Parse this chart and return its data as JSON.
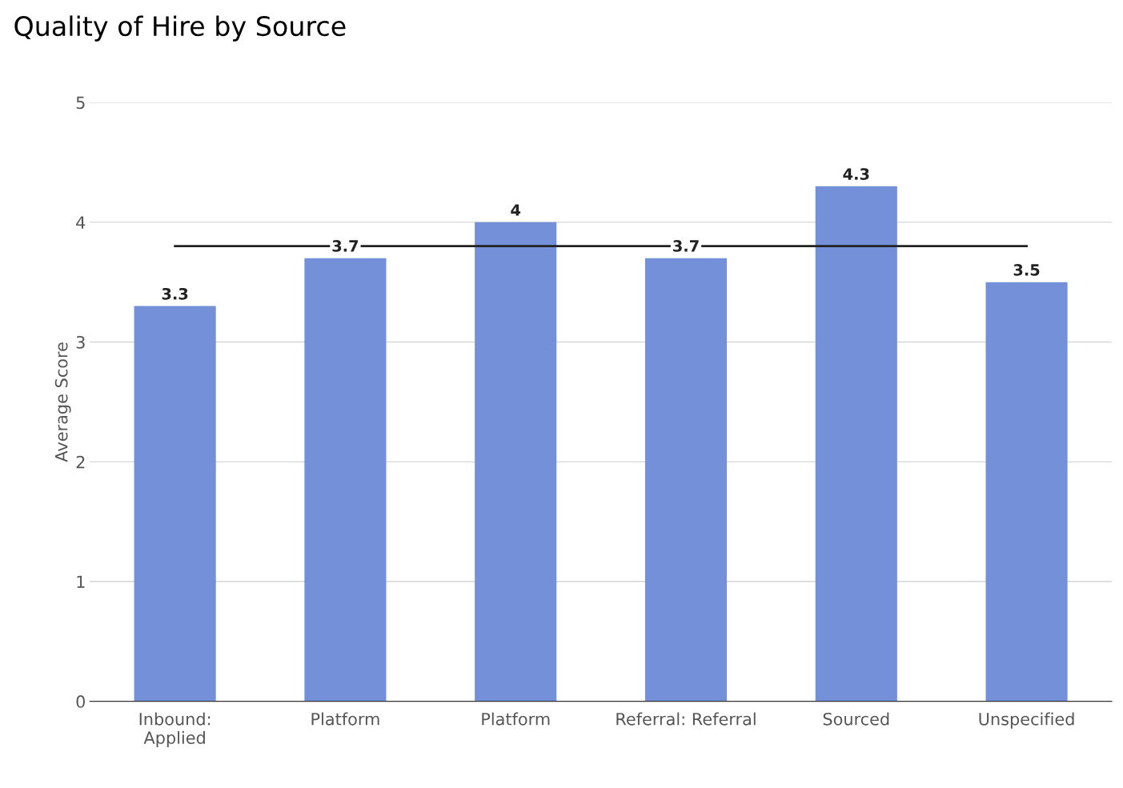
{
  "chart_data": {
    "type": "bar",
    "title": "Quality of Hire by Source",
    "ylabel": "Average Score",
    "categories": [
      "Inbound:\nApplied",
      "Platform",
      "Platform",
      "Referral: Referral",
      "Sourced",
      "Unspecified"
    ],
    "values": [
      3.3,
      3.7,
      4,
      3.7,
      4.3,
      3.5
    ],
    "color": "#7490d8",
    "ylim": [
      0,
      5
    ],
    "yticks": [
      0,
      1,
      2,
      3,
      4,
      5
    ],
    "grid": "y",
    "data_labels": true,
    "ref_lines": [
      {
        "axis": "y",
        "value": 3.8,
        "color": "#222222",
        "line_style": "solid"
      }
    ]
  }
}
